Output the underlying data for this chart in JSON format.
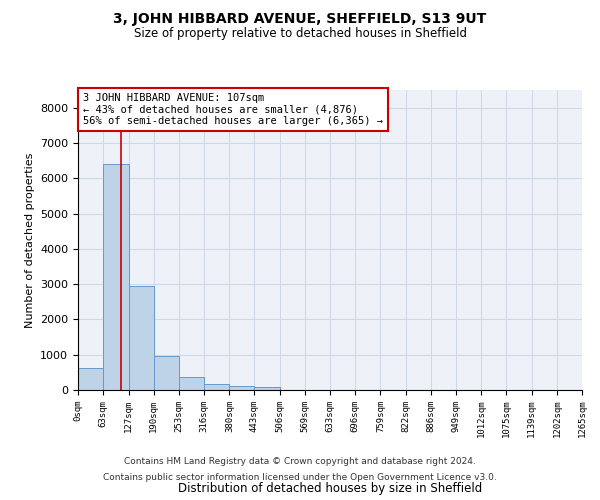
{
  "title_line1": "3, JOHN HIBBARD AVENUE, SHEFFIELD, S13 9UT",
  "title_line2": "Size of property relative to detached houses in Sheffield",
  "xlabel": "Distribution of detached houses by size in Sheffield",
  "ylabel": "Number of detached properties",
  "bar_color": "#bfd3e8",
  "bar_edge_color": "#6699cc",
  "bar_values": [
    620,
    6400,
    2950,
    960,
    380,
    180,
    120,
    80,
    0,
    0,
    0,
    0,
    0,
    0,
    0,
    0,
    0,
    0,
    0,
    0
  ],
  "bin_edges": [
    0,
    63,
    127,
    190,
    253,
    316,
    380,
    443,
    506,
    569,
    633,
    696,
    759,
    822,
    886,
    949,
    1012,
    1075,
    1139,
    1202,
    1265
  ],
  "x_tick_labels": [
    "0sqm",
    "63sqm",
    "127sqm",
    "190sqm",
    "253sqm",
    "316sqm",
    "380sqm",
    "443sqm",
    "506sqm",
    "569sqm",
    "633sqm",
    "696sqm",
    "759sqm",
    "822sqm",
    "886sqm",
    "949sqm",
    "1012sqm",
    "1075sqm",
    "1139sqm",
    "1202sqm",
    "1265sqm"
  ],
  "ylim": [
    0,
    8500
  ],
  "yticks": [
    0,
    1000,
    2000,
    3000,
    4000,
    5000,
    6000,
    7000,
    8000
  ],
  "property_size": 107,
  "vline_color": "#cc0000",
  "annotation_text": "3 JOHN HIBBARD AVENUE: 107sqm\n← 43% of detached houses are smaller (4,876)\n56% of semi-detached houses are larger (6,365) →",
  "annotation_box_color": "#ffffff",
  "annotation_box_edge_color": "#cc0000",
  "grid_color": "#d0d8e8",
  "background_color": "#eef2f8",
  "footer_line1": "Contains HM Land Registry data © Crown copyright and database right 2024.",
  "footer_line2": "Contains public sector information licensed under the Open Government Licence v3.0."
}
